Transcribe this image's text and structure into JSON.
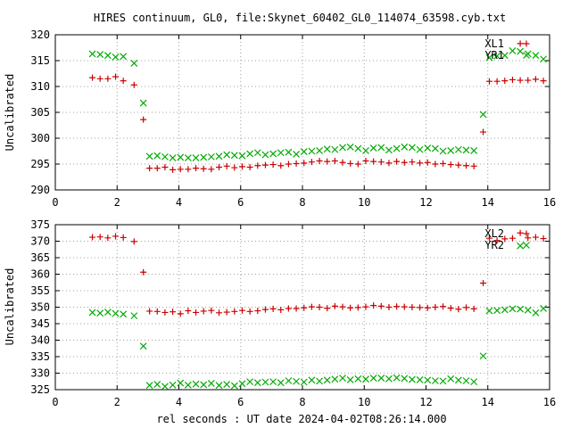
{
  "title": "HIRES continuum, GL0, file:Skynet_60402_GL0_114074_63598.cyb.txt",
  "xlabel": "rel seconds : UT date 2024-04-02T08:26:14.000",
  "chart_data": [
    {
      "type": "scatter",
      "ylabel": "Uncalibrated",
      "xlim": [
        0,
        16
      ],
      "ylim": [
        290,
        320
      ],
      "xticks": [
        "0",
        "2",
        "4",
        "6",
        "8",
        "10",
        "12",
        "14",
        "16"
      ],
      "yticks": [
        "290",
        "295",
        "300",
        "305",
        "310",
        "315",
        "320"
      ],
      "grid": true,
      "legend": "top-right",
      "series": [
        {
          "name": "XL1",
          "marker": "plus",
          "color": "#cc0000",
          "x": [
            1.2,
            1.45,
            1.7,
            1.95,
            2.2,
            2.55,
            2.85,
            3.05,
            3.3,
            3.55,
            3.8,
            4.05,
            4.3,
            4.55,
            4.8,
            5.05,
            5.3,
            5.55,
            5.8,
            6.05,
            6.3,
            6.55,
            6.8,
            7.05,
            7.3,
            7.55,
            7.8,
            8.05,
            8.3,
            8.55,
            8.8,
            9.05,
            9.3,
            9.55,
            9.8,
            10.05,
            10.3,
            10.55,
            10.8,
            11.05,
            11.3,
            11.55,
            11.8,
            12.05,
            12.3,
            12.55,
            12.8,
            13.05,
            13.3,
            13.55,
            13.85,
            14.05,
            14.3,
            14.55,
            14.8,
            15.05,
            15.05,
            15.3,
            15.55,
            15.8
          ],
          "y": [
            311.7,
            311.5,
            311.5,
            311.9,
            311.1,
            310.3,
            303.6,
            294.2,
            294.2,
            294.4,
            293.9,
            294.0,
            294.0,
            294.2,
            294.1,
            294.0,
            294.4,
            294.6,
            294.3,
            294.5,
            294.4,
            294.7,
            294.8,
            294.9,
            294.7,
            295.0,
            295.1,
            295.2,
            295.4,
            295.6,
            295.5,
            295.6,
            295.3,
            295.1,
            295.0,
            295.6,
            295.5,
            295.4,
            295.2,
            295.5,
            295.3,
            295.4,
            295.2,
            295.3,
            295.0,
            295.1,
            294.9,
            294.8,
            294.7,
            294.6,
            301.2,
            311.0,
            311.0,
            311.1,
            311.3,
            311.2,
            318.3,
            311.2,
            311.4,
            311.1
          ]
        },
        {
          "name": "YR1",
          "marker": "cross",
          "color": "#00aa00",
          "x": [
            1.2,
            1.45,
            1.7,
            1.95,
            2.2,
            2.55,
            2.85,
            3.05,
            3.3,
            3.55,
            3.8,
            4.05,
            4.3,
            4.55,
            4.8,
            5.05,
            5.3,
            5.55,
            5.8,
            6.05,
            6.3,
            6.55,
            6.8,
            7.05,
            7.3,
            7.55,
            7.8,
            8.05,
            8.3,
            8.55,
            8.8,
            9.05,
            9.3,
            9.55,
            9.8,
            10.05,
            10.3,
            10.55,
            10.8,
            11.05,
            11.3,
            11.55,
            11.8,
            12.05,
            12.3,
            12.55,
            12.8,
            13.05,
            13.3,
            13.55,
            13.85,
            14.05,
            14.3,
            14.55,
            14.8,
            15.05,
            15.3,
            15.55,
            15.8
          ],
          "y": [
            316.3,
            316.2,
            316.0,
            315.7,
            315.8,
            314.5,
            306.8,
            296.5,
            296.6,
            296.4,
            296.2,
            296.3,
            296.2,
            296.2,
            296.3,
            296.4,
            296.5,
            296.8,
            296.7,
            296.6,
            297.0,
            297.2,
            296.8,
            297.0,
            297.2,
            297.3,
            296.9,
            297.4,
            297.5,
            297.6,
            297.9,
            297.8,
            298.2,
            298.3,
            298.0,
            297.6,
            298.1,
            298.2,
            297.7,
            298.0,
            298.3,
            298.2,
            297.8,
            298.1,
            298.0,
            297.5,
            297.6,
            297.8,
            297.7,
            297.6,
            304.6,
            315.6,
            315.9,
            316.0,
            316.9,
            316.8,
            316.3,
            316.0,
            315.3
          ]
        }
      ]
    },
    {
      "type": "scatter",
      "ylabel": "Uncalibrated",
      "xlim": [
        0,
        16
      ],
      "ylim": [
        325,
        375
      ],
      "xticks": [
        "0",
        "2",
        "4",
        "6",
        "8",
        "10",
        "12",
        "14",
        "16"
      ],
      "yticks": [
        "325",
        "330",
        "335",
        "340",
        "345",
        "350",
        "355",
        "360",
        "365",
        "370",
        "375"
      ],
      "grid": true,
      "legend": "top-right",
      "series": [
        {
          "name": "XL2",
          "marker": "plus",
          "color": "#cc0000",
          "x": [
            1.2,
            1.45,
            1.7,
            1.95,
            2.2,
            2.55,
            2.85,
            3.05,
            3.3,
            3.55,
            3.8,
            4.05,
            4.3,
            4.55,
            4.8,
            5.05,
            5.3,
            5.55,
            5.8,
            6.05,
            6.3,
            6.55,
            6.8,
            7.05,
            7.3,
            7.55,
            7.8,
            8.05,
            8.3,
            8.55,
            8.8,
            9.05,
            9.3,
            9.55,
            9.8,
            10.05,
            10.3,
            10.55,
            10.8,
            11.05,
            11.3,
            11.55,
            11.8,
            12.05,
            12.3,
            12.55,
            12.8,
            13.05,
            13.3,
            13.55,
            13.85,
            14.05,
            14.3,
            14.55,
            14.8,
            15.05,
            15.3,
            15.55,
            15.8
          ],
          "y": [
            371.2,
            371.3,
            371.0,
            371.5,
            371.1,
            369.9,
            360.6,
            348.8,
            348.7,
            348.4,
            348.6,
            348.0,
            348.9,
            348.4,
            348.8,
            349.0,
            348.3,
            348.5,
            348.7,
            349.0,
            348.7,
            348.9,
            349.3,
            349.5,
            349.2,
            349.6,
            349.6,
            349.8,
            350.1,
            350.0,
            349.7,
            350.3,
            350.1,
            349.8,
            349.9,
            350.1,
            350.5,
            350.3,
            350.0,
            350.2,
            350.1,
            350.0,
            349.9,
            349.8,
            350.0,
            350.2,
            349.7,
            349.4,
            349.9,
            349.5,
            357.3,
            370.9,
            370.2,
            370.7,
            370.9,
            372.5,
            371.0,
            371.2,
            370.8
          ]
        },
        {
          "name": "YR2",
          "marker": "cross",
          "color": "#00aa00",
          "x": [
            1.2,
            1.45,
            1.7,
            1.95,
            2.2,
            2.55,
            2.85,
            3.05,
            3.3,
            3.55,
            3.8,
            4.05,
            4.3,
            4.55,
            4.8,
            5.05,
            5.3,
            5.55,
            5.8,
            6.05,
            6.3,
            6.55,
            6.8,
            7.05,
            7.3,
            7.55,
            7.8,
            8.05,
            8.3,
            8.55,
            8.8,
            9.05,
            9.3,
            9.55,
            9.8,
            10.05,
            10.3,
            10.55,
            10.8,
            11.05,
            11.3,
            11.55,
            11.8,
            12.05,
            12.3,
            12.55,
            12.8,
            13.05,
            13.3,
            13.55,
            13.85,
            14.05,
            14.3,
            14.55,
            14.8,
            15.05,
            15.05,
            15.3,
            15.55,
            15.8
          ],
          "y": [
            348.4,
            348.2,
            348.5,
            348.1,
            347.9,
            347.4,
            338.2,
            326.3,
            326.6,
            326.0,
            326.4,
            327.0,
            326.4,
            326.7,
            326.5,
            326.9,
            326.3,
            326.6,
            326.2,
            326.8,
            327.4,
            327.1,
            327.3,
            327.4,
            327.1,
            327.7,
            327.5,
            327.3,
            327.9,
            327.6,
            327.9,
            328.2,
            328.5,
            328.0,
            328.3,
            328.2,
            328.5,
            328.5,
            328.3,
            328.6,
            328.4,
            328.1,
            328.0,
            327.9,
            327.7,
            327.6,
            328.3,
            327.9,
            327.7,
            327.4,
            335.2,
            348.9,
            349.0,
            349.2,
            349.5,
            349.4,
            368.6,
            349.1,
            348.3,
            349.6
          ]
        }
      ]
    }
  ]
}
